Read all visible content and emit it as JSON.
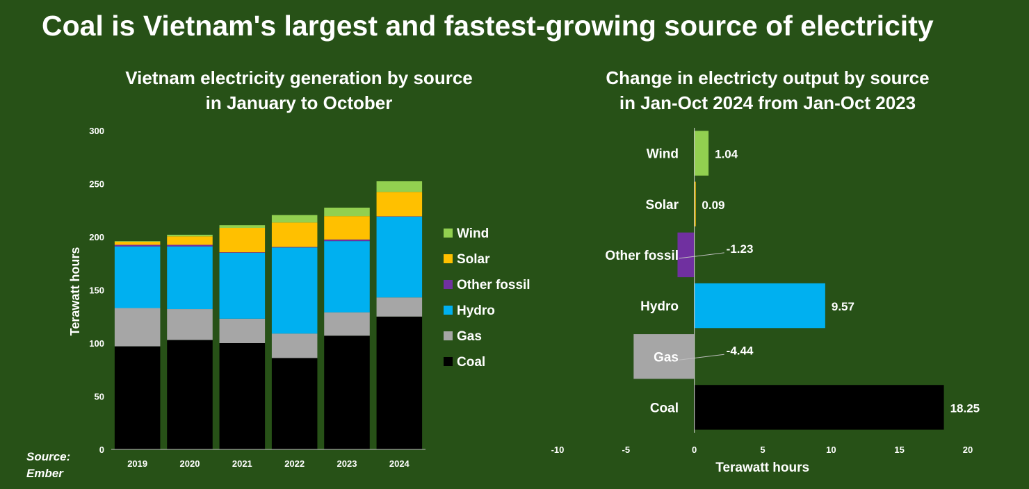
{
  "title": "Coal is Vietnam's largest and fastest-growing source of electricity",
  "source_label": "Source:",
  "source_value": "Ember",
  "colors": {
    "background": "#275117",
    "Wind": "#92d050",
    "Solar": "#ffc000",
    "Other fossil": "#7030a0",
    "Hydro": "#00b0f0",
    "Gas": "#a6a6a6",
    "Coal": "#000000"
  },
  "chart_data": [
    {
      "type": "bar",
      "stacked": true,
      "title": "Vietnam electricity generation by source in January to October",
      "title_lines": [
        "Vietnam electricity generation by source",
        "in January to October"
      ],
      "xlabel": "",
      "ylabel": "Terawatt hours",
      "ylim": [
        0,
        300
      ],
      "yticks": [
        0,
        50,
        100,
        150,
        200,
        250,
        300
      ],
      "categories": [
        "2019",
        "2020",
        "2021",
        "2022",
        "2023",
        "2024"
      ],
      "series": [
        {
          "name": "Coal",
          "values": [
            97,
            103,
            100,
            86,
            107,
            125
          ]
        },
        {
          "name": "Gas",
          "values": [
            36,
            29,
            23,
            23,
            22,
            18
          ]
        },
        {
          "name": "Hydro",
          "values": [
            58,
            59,
            62,
            81,
            67,
            76
          ]
        },
        {
          "name": "Other fossil",
          "values": [
            1.5,
            1.5,
            0.5,
            0.5,
            1.5,
            0.3
          ]
        },
        {
          "name": "Solar",
          "values": [
            3,
            8,
            23,
            23,
            22,
            23
          ]
        },
        {
          "name": "Wind",
          "values": [
            0.5,
            1.5,
            2.5,
            7,
            8,
            10
          ]
        }
      ],
      "legend": [
        "Wind",
        "Solar",
        "Other fossil",
        "Hydro",
        "Gas",
        "Coal"
      ],
      "legend_position": "right",
      "grid": false
    },
    {
      "type": "bar",
      "orientation": "horizontal",
      "title": "Change in electricty output by source in Jan-Oct 2024 from Jan-Oct 2023",
      "title_lines": [
        "Change in electricty output by source",
        "in Jan-Oct 2024 from Jan-Oct 2023"
      ],
      "xlabel": "Terawatt hours",
      "ylabel": "",
      "xlim": [
        -10,
        20
      ],
      "xticks": [
        -10,
        -5,
        0,
        5,
        10,
        15,
        20
      ],
      "categories": [
        "Wind",
        "Solar",
        "Other fossil",
        "Hydro",
        "Gas",
        "Coal"
      ],
      "values": [
        1.04,
        0.09,
        -1.23,
        9.57,
        -4.44,
        18.25
      ],
      "value_labels": [
        "1.04",
        "0.09",
        "-1.23",
        "9.57",
        "-4.44",
        "18.25"
      ],
      "grid": false
    }
  ]
}
